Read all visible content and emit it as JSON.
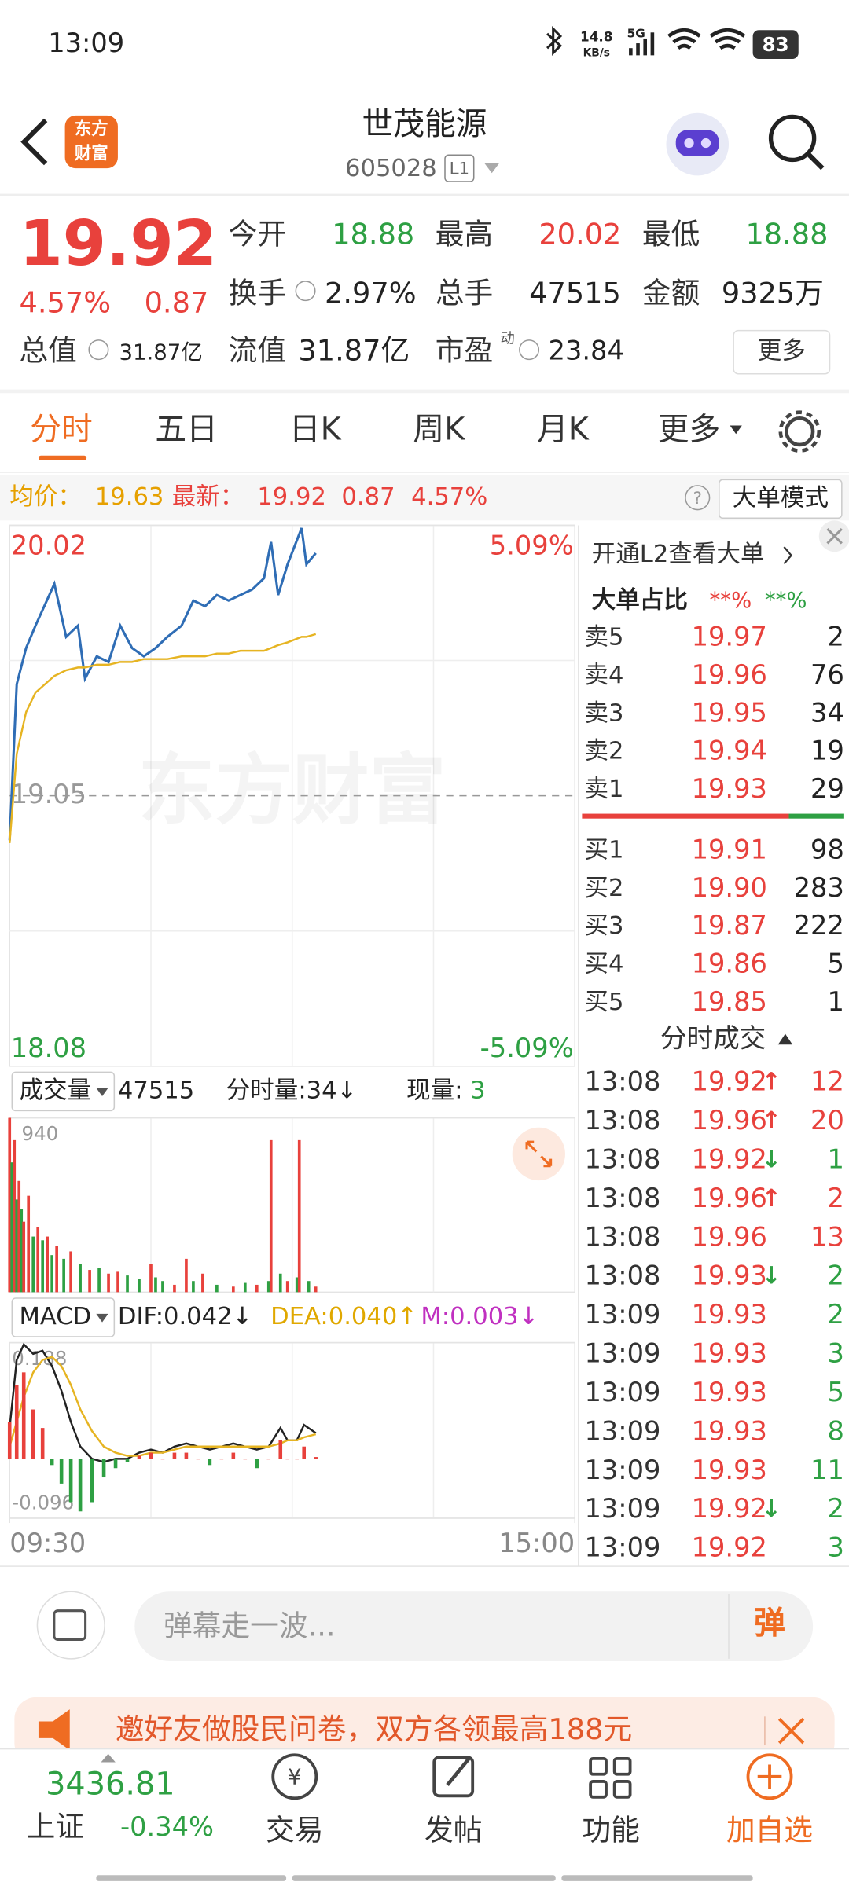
{
  "status_bar": {
    "time": "13:09",
    "speed": "14.8",
    "speed_unit": "KB/s",
    "network": "5G",
    "battery": "83"
  },
  "header": {
    "logo": [
      "东方",
      "财富"
    ],
    "title": "世茂能源",
    "code": "605028",
    "level": "L1"
  },
  "quote": {
    "price": "19.92",
    "change_pct": "4.57%",
    "change": "0.87",
    "open_label": "今开",
    "open": "18.88",
    "high_label": "最高",
    "high": "20.02",
    "low_label": "最低",
    "low": "18.88",
    "turnover_label": "换手",
    "turnover": "2.97%",
    "volume_label": "总手",
    "volume": "47515",
    "amount_label": "金额",
    "amount": "9325万",
    "total_cap_label": "总值",
    "total_cap": "31.87亿",
    "float_cap_label": "流值",
    "float_cap": "31.87亿",
    "pe_label": "市盈",
    "pe_sup": "动",
    "pe": "23.84",
    "more": "更多"
  },
  "tabs": [
    "分时",
    "五日",
    "日K",
    "周K",
    "月K",
    "更多"
  ],
  "active_tab": 0,
  "info_bar": {
    "avg_label": "均价：",
    "avg": "19.63",
    "latest_label": "最新：",
    "latest": "19.92",
    "change": "0.87",
    "change_pct": "4.57%",
    "mode": "大单模式"
  },
  "chart_data": [
    {
      "type": "line",
      "watermark": "东方财富",
      "x": [
        0,
        3,
        7,
        11,
        19,
        24,
        29,
        32,
        37,
        42,
        47,
        52,
        57,
        62,
        67,
        73,
        78,
        83,
        88,
        93,
        98,
        103,
        108,
        111,
        114,
        118,
        124,
        126,
        130
      ],
      "xlim": [
        0,
        240
      ],
      "ylim": [
        18.08,
        20.02
      ],
      "yticks": [
        18.08,
        19.05,
        20.02
      ],
      "y2lim": [
        -5.09,
        5.09
      ],
      "y2ticks": [
        {
          "value": -5.09,
          "label": "-5.09%"
        },
        {
          "value": 5.09,
          "label": "5.09%"
        }
      ],
      "series": [
        {
          "color": "#2f6db5",
          "values": [
            18.89,
            19.45,
            19.58,
            19.66,
            19.81,
            19.62,
            19.66,
            19.47,
            19.55,
            19.53,
            19.66,
            19.58,
            19.55,
            19.58,
            19.62,
            19.66,
            19.75,
            19.73,
            19.77,
            19.75,
            19.77,
            19.79,
            19.83,
            19.96,
            19.77,
            19.88,
            20.01,
            19.88,
            19.92
          ]
        },
        {
          "color": "#e6b422",
          "values": [
            18.88,
            19.2,
            19.35,
            19.42,
            19.48,
            19.5,
            19.51,
            19.51,
            19.52,
            19.52,
            19.53,
            19.53,
            19.54,
            19.54,
            19.54,
            19.55,
            19.55,
            19.55,
            19.56,
            19.56,
            19.57,
            19.57,
            19.57,
            19.58,
            19.59,
            19.6,
            19.62,
            19.62,
            19.63
          ]
        }
      ]
    },
    {
      "type": "bar",
      "title": "成交量",
      "total": "47515",
      "tick_volume": "分时量:34↓",
      "current_label": "现量:",
      "current": "3",
      "x": [
        0,
        1,
        2,
        3,
        4,
        5,
        6,
        8,
        10,
        12,
        14,
        16,
        18,
        20,
        23,
        26,
        30,
        34,
        38,
        42,
        46,
        50,
        55,
        60,
        62,
        65,
        70,
        75,
        78,
        82,
        88,
        95,
        100,
        105,
        110,
        111,
        115,
        118,
        122,
        123,
        127,
        130
      ],
      "values": [
        940,
        700,
        820,
        500,
        600,
        450,
        380,
        520,
        300,
        350,
        280,
        300,
        200,
        250,
        180,
        220,
        150,
        120,
        130,
        100,
        110,
        90,
        70,
        150,
        80,
        60,
        40,
        180,
        60,
        100,
        40,
        30,
        50,
        40,
        60,
        820,
        100,
        60,
        80,
        820,
        60,
        30
      ],
      "colors": [
        "#e8413c",
        "#2ea043",
        "#e8413c",
        "#2ea043",
        "#e8413c",
        "#2ea043",
        "#e8413c",
        "#e8413c",
        "#2ea043",
        "#e8413c",
        "#2ea043",
        "#e8413c",
        "#2ea043",
        "#e8413c",
        "#2ea043",
        "#e8413c",
        "#2ea043",
        "#e8413c",
        "#2ea043",
        "#e8413c",
        "#e8413c",
        "#2ea043",
        "#2ea043",
        "#e8413c",
        "#2ea043",
        "#2ea043",
        "#e8413c",
        "#e8413c",
        "#2ea043",
        "#e8413c",
        "#2ea043",
        "#e8413c",
        "#2ea043",
        "#e8413c",
        "#2ea043",
        "#e8413c",
        "#2ea043",
        "#e8413c",
        "#2ea043",
        "#e8413c",
        "#2ea043",
        "#e8413c"
      ],
      "xlim": [
        0,
        240
      ],
      "ylim": [
        0,
        940
      ],
      "yticks": [
        940
      ]
    },
    {
      "type": "macd",
      "title": "MACD",
      "dif_label": "DIF:0.042↓",
      "dea_label": "DEA:0.040↑",
      "m_label": "M:0.003↓",
      "x": [
        0,
        3,
        6,
        10,
        14,
        18,
        22,
        26,
        30,
        35,
        40,
        45,
        50,
        55,
        60,
        65,
        70,
        75,
        80,
        85,
        90,
        95,
        100,
        105,
        110,
        115,
        118,
        122,
        125,
        130
      ],
      "xlim": [
        0,
        240
      ],
      "xticks": [
        {
          "value": 0,
          "label": "09:30"
        },
        {
          "value": 240,
          "label": "15:00"
        }
      ],
      "ylim": [
        -0.096,
        0.188
      ],
      "yticks": [
        -0.096,
        0.188
      ],
      "up_color": "#e8413c",
      "down_color": "#2ea043",
      "series": [
        {
          "color": "#222222",
          "values": [
            0.05,
            0.16,
            0.185,
            0.17,
            0.175,
            0.15,
            0.11,
            0.06,
            0.02,
            0.0,
            -0.005,
            0.0,
            0.0,
            0.01,
            0.015,
            0.01,
            0.02,
            0.025,
            0.02,
            0.015,
            0.02,
            0.025,
            0.02,
            0.015,
            0.02,
            0.05,
            0.03,
            0.03,
            0.055,
            0.042
          ]
        },
        {
          "color": "#e6b422",
          "values": [
            0.02,
            0.06,
            0.1,
            0.14,
            0.16,
            0.165,
            0.15,
            0.12,
            0.08,
            0.045,
            0.02,
            0.01,
            0.005,
            0.005,
            0.01,
            0.01,
            0.015,
            0.02,
            0.02,
            0.02,
            0.02,
            0.02,
            0.02,
            0.02,
            0.02,
            0.025,
            0.03,
            0.03,
            0.035,
            0.04
          ]
        },
        {
          "values": [
            0.06,
            0.12,
            0.14,
            0.08,
            0.05,
            -0.01,
            -0.04,
            -0.07,
            -0.085,
            -0.07,
            -0.03,
            -0.015,
            -0.005,
            0.005,
            0.01,
            0.0,
            0.01,
            0.01,
            0.0,
            -0.01,
            0.0,
            0.01,
            0.0,
            -0.015,
            0.0,
            0.03,
            0.0,
            0.0,
            0.02,
            0.003
          ]
        }
      ]
    }
  ],
  "side_panel": {
    "promo": "开通L2查看大单",
    "big_order_label": "大单占比",
    "big_buy": "**%",
    "big_sell": "**%",
    "asks": [
      {
        "label": "卖5",
        "price": "19.97",
        "qty": "2"
      },
      {
        "label": "卖4",
        "price": "19.96",
        "qty": "76"
      },
      {
        "label": "卖3",
        "price": "19.95",
        "qty": "34"
      },
      {
        "label": "卖2",
        "price": "19.94",
        "qty": "19"
      },
      {
        "label": "卖1",
        "price": "19.93",
        "qty": "29"
      }
    ],
    "bids": [
      {
        "label": "买1",
        "price": "19.91",
        "qty": "98"
      },
      {
        "label": "买2",
        "price": "19.90",
        "qty": "283"
      },
      {
        "label": "买3",
        "price": "19.87",
        "qty": "222"
      },
      {
        "label": "买4",
        "price": "19.86",
        "qty": "5"
      },
      {
        "label": "买5",
        "price": "19.85",
        "qty": "1"
      }
    ],
    "trades_title": "分时成交",
    "trades": [
      {
        "time": "13:08",
        "price": "19.92",
        "dir": "↑",
        "qty": "12",
        "color": "#e8413c"
      },
      {
        "time": "13:08",
        "price": "19.96",
        "dir": "↑",
        "qty": "20",
        "color": "#e8413c"
      },
      {
        "time": "13:08",
        "price": "19.92",
        "dir": "↓",
        "qty": "1",
        "color": "#2ea043"
      },
      {
        "time": "13:08",
        "price": "19.96",
        "dir": "↑",
        "qty": "2",
        "color": "#e8413c"
      },
      {
        "time": "13:08",
        "price": "19.96",
        "qty": "13",
        "color": "#e8413c"
      },
      {
        "time": "13:08",
        "price": "19.93",
        "dir": "↓",
        "qty": "2",
        "color": "#2ea043"
      },
      {
        "time": "13:09",
        "price": "19.93",
        "qty": "2",
        "color": "#2ea043"
      },
      {
        "time": "13:09",
        "price": "19.93",
        "qty": "3",
        "color": "#2ea043"
      },
      {
        "time": "13:09",
        "price": "19.93",
        "qty": "5",
        "color": "#2ea043"
      },
      {
        "time": "13:09",
        "price": "19.93",
        "qty": "8",
        "color": "#2ea043"
      },
      {
        "time": "13:09",
        "price": "19.93",
        "qty": "11",
        "color": "#2ea043"
      },
      {
        "time": "13:09",
        "price": "19.92",
        "dir": "↓",
        "qty": "2",
        "color": "#2ea043"
      },
      {
        "time": "13:09",
        "price": "19.92",
        "qty": "3",
        "color": "#2ea043"
      }
    ]
  },
  "comment": {
    "placeholder": "弹幕走一波...",
    "button": "弹"
  },
  "banner": "邀好友做股民问卷，双方各领最高188元",
  "index": {
    "value": "3436.81",
    "name": "上证",
    "change": "-0.34%"
  },
  "nav": [
    "交易",
    "发帖",
    "功能",
    "加自选"
  ]
}
